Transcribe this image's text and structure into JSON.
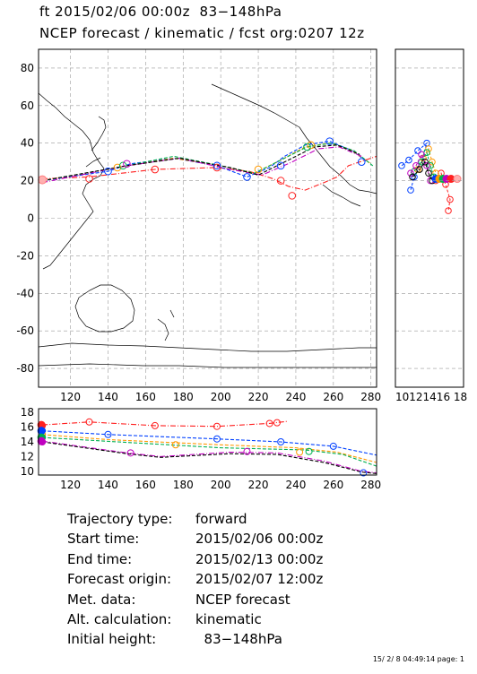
{
  "header": {
    "line1": "ft 2015/02/06 00:00z  83−148hPa",
    "line2": "NCEP forecast / kinematic / fcst org:0207 12z"
  },
  "chart_data": [
    {
      "type": "line",
      "name": "trajectory-map",
      "xlim": [
        103,
        283
      ],
      "ylim": [
        -90,
        90
      ],
      "xticks": [
        120,
        140,
        160,
        180,
        200,
        220,
        240,
        260,
        280
      ],
      "yticks": [
        -80,
        -60,
        -40,
        -20,
        0,
        20,
        40,
        60,
        80
      ],
      "grid": true,
      "series": [
        {
          "color": "#ff2020",
          "style": "dash-dot",
          "x": [
            105,
            130,
            165,
            198,
            215,
            228,
            236,
            245,
            255,
            262,
            268,
            283
          ],
          "y": [
            21,
            22,
            26,
            27,
            25,
            21,
            17,
            15,
            19,
            22,
            28,
            33
          ]
        },
        {
          "color": "#0040ff",
          "style": "dashed",
          "x": [
            105,
            140,
            152,
            175,
            198,
            214,
            226,
            234,
            245,
            258,
            270,
            278
          ],
          "y": [
            20,
            25,
            29,
            32,
            28,
            22,
            27,
            33,
            39,
            41,
            36,
            30
          ]
        },
        {
          "color": "#ff9900",
          "style": "dashed",
          "x": [
            105,
            145,
            175,
            200,
            218,
            232,
            245,
            258,
            270,
            280
          ],
          "y": [
            20,
            27,
            32,
            28,
            24,
            31,
            38,
            40,
            36,
            29
          ]
        },
        {
          "color": "#00b050",
          "style": "dashed",
          "x": [
            105,
            145,
            175,
            200,
            218,
            232,
            246,
            259,
            271,
            281
          ],
          "y": [
            20,
            27,
            33,
            28,
            24,
            31,
            38,
            40,
            36,
            28
          ]
        },
        {
          "color": "#c000c0",
          "style": "dash-dot",
          "x": [
            105,
            150,
            178,
            205,
            222,
            238,
            252,
            263,
            275
          ],
          "y": [
            19,
            28,
            32,
            26,
            23,
            30,
            37,
            38,
            33
          ]
        },
        {
          "color": "#000000",
          "style": "dashed",
          "x": [
            105,
            150,
            178,
            205,
            220,
            236,
            250,
            262,
            274
          ],
          "y": [
            20,
            28,
            32,
            27,
            23,
            31,
            38,
            39,
            34
          ]
        }
      ],
      "markers": [
        {
          "color": "#ff2020",
          "x": [
            130,
            165,
            198,
            232,
            238
          ],
          "y": [
            21,
            26,
            27,
            20,
            12
          ]
        },
        {
          "color": "#0040ff",
          "x": [
            140,
            198,
            214,
            232,
            258,
            275
          ],
          "y": [
            25,
            28,
            22,
            28,
            41,
            30
          ]
        },
        {
          "color": "#ff9900",
          "x": [
            145,
            220,
            248
          ],
          "y": [
            27,
            26,
            39
          ]
        },
        {
          "color": "#00b050",
          "x": [
            148,
            246
          ],
          "y": [
            28,
            38
          ]
        },
        {
          "color": "#c000c0",
          "x": [
            150
          ],
          "y": [
            29
          ]
        }
      ]
    },
    {
      "type": "line",
      "name": "height-vs-longitude",
      "xlim": [
        103,
        283
      ],
      "ylim": [
        9.5,
        18.5
      ],
      "xticks": [
        120,
        140,
        160,
        180,
        200,
        220,
        240,
        260,
        280
      ],
      "yticks": [
        10,
        12,
        14,
        16,
        18
      ],
      "series": [
        {
          "color": "#ff2020",
          "style": "dash-dot",
          "x": [
            105,
            130,
            165,
            198,
            226,
            236
          ],
          "y": [
            16.3,
            16.7,
            16.2,
            16.1,
            16.5,
            16.8
          ]
        },
        {
          "color": "#0040ff",
          "style": "dashed",
          "x": [
            105,
            140,
            198,
            232,
            260,
            283
          ],
          "y": [
            15.5,
            15.0,
            14.4,
            14.0,
            13.4,
            12.2
          ]
        },
        {
          "color": "#ff9900",
          "style": "dashed",
          "x": [
            105,
            140,
            200,
            240,
            262,
            283
          ],
          "y": [
            15.0,
            14.3,
            13.6,
            13.2,
            12.6,
            11.2
          ]
        },
        {
          "color": "#00b050",
          "style": "dashed",
          "x": [
            105,
            145,
            200,
            245,
            265,
            283
          ],
          "y": [
            14.6,
            14.0,
            13.2,
            12.9,
            12.3,
            10.7
          ]
        },
        {
          "color": "#c000c0",
          "style": "dash-dot",
          "x": [
            105,
            150,
            168,
            205,
            230,
            255,
            275,
            283
          ],
          "y": [
            14.1,
            12.5,
            12.0,
            12.6,
            12.5,
            11.4,
            10.0,
            9.8
          ]
        },
        {
          "color": "#000000",
          "style": "dashed",
          "x": [
            105,
            150,
            168,
            205,
            230,
            255,
            275,
            283
          ],
          "y": [
            14.0,
            12.4,
            11.9,
            12.4,
            12.3,
            11.2,
            9.9,
            9.7
          ]
        }
      ],
      "markers": [
        {
          "color": "#ff2020",
          "x": [
            105,
            130,
            165,
            198,
            226,
            230
          ],
          "y": [
            16.2,
            16.7,
            16.2,
            16.1,
            16.5,
            16.6
          ]
        },
        {
          "color": "#0040ff",
          "x": [
            105,
            140,
            198,
            232,
            260,
            276
          ],
          "y": [
            15.5,
            15.0,
            14.4,
            14.0,
            13.4,
            9.8
          ]
        },
        {
          "color": "#ff9900",
          "x": [
            105,
            176,
            242
          ],
          "y": [
            15.0,
            13.6,
            12.6
          ]
        },
        {
          "color": "#00b050",
          "x": [
            105,
            247
          ],
          "y": [
            14.6,
            12.7
          ]
        },
        {
          "color": "#c000c0",
          "x": [
            105,
            152,
            214
          ],
          "y": [
            14.0,
            12.5,
            12.7
          ]
        }
      ]
    },
    {
      "type": "scatter",
      "name": "height-vs-latitude",
      "xticklabel": "10121416 18",
      "ylim": [
        -90,
        90
      ],
      "colors": [
        "#ff2020",
        "#0040ff",
        "#ff9900",
        "#00b050",
        "#c000c0",
        "#000000"
      ]
    }
  ],
  "info": [
    {
      "key": "Trajectory type:",
      "value": "forward"
    },
    {
      "key": "Start time:",
      "value": "2015/02/06 00:00z"
    },
    {
      "key": "End time:",
      "value": "2015/02/13 00:00z"
    },
    {
      "key": "Forecast origin:",
      "value": "2015/02/07 12:00z"
    },
    {
      "key": "Met. data:",
      "value": "NCEP forecast"
    },
    {
      "key": "Alt. calculation:",
      "value": "kinematic"
    },
    {
      "key": "Initial height:",
      "value": "  83−148hPa"
    }
  ],
  "footer": "15/ 2/ 8 04:49:14 page: 1"
}
